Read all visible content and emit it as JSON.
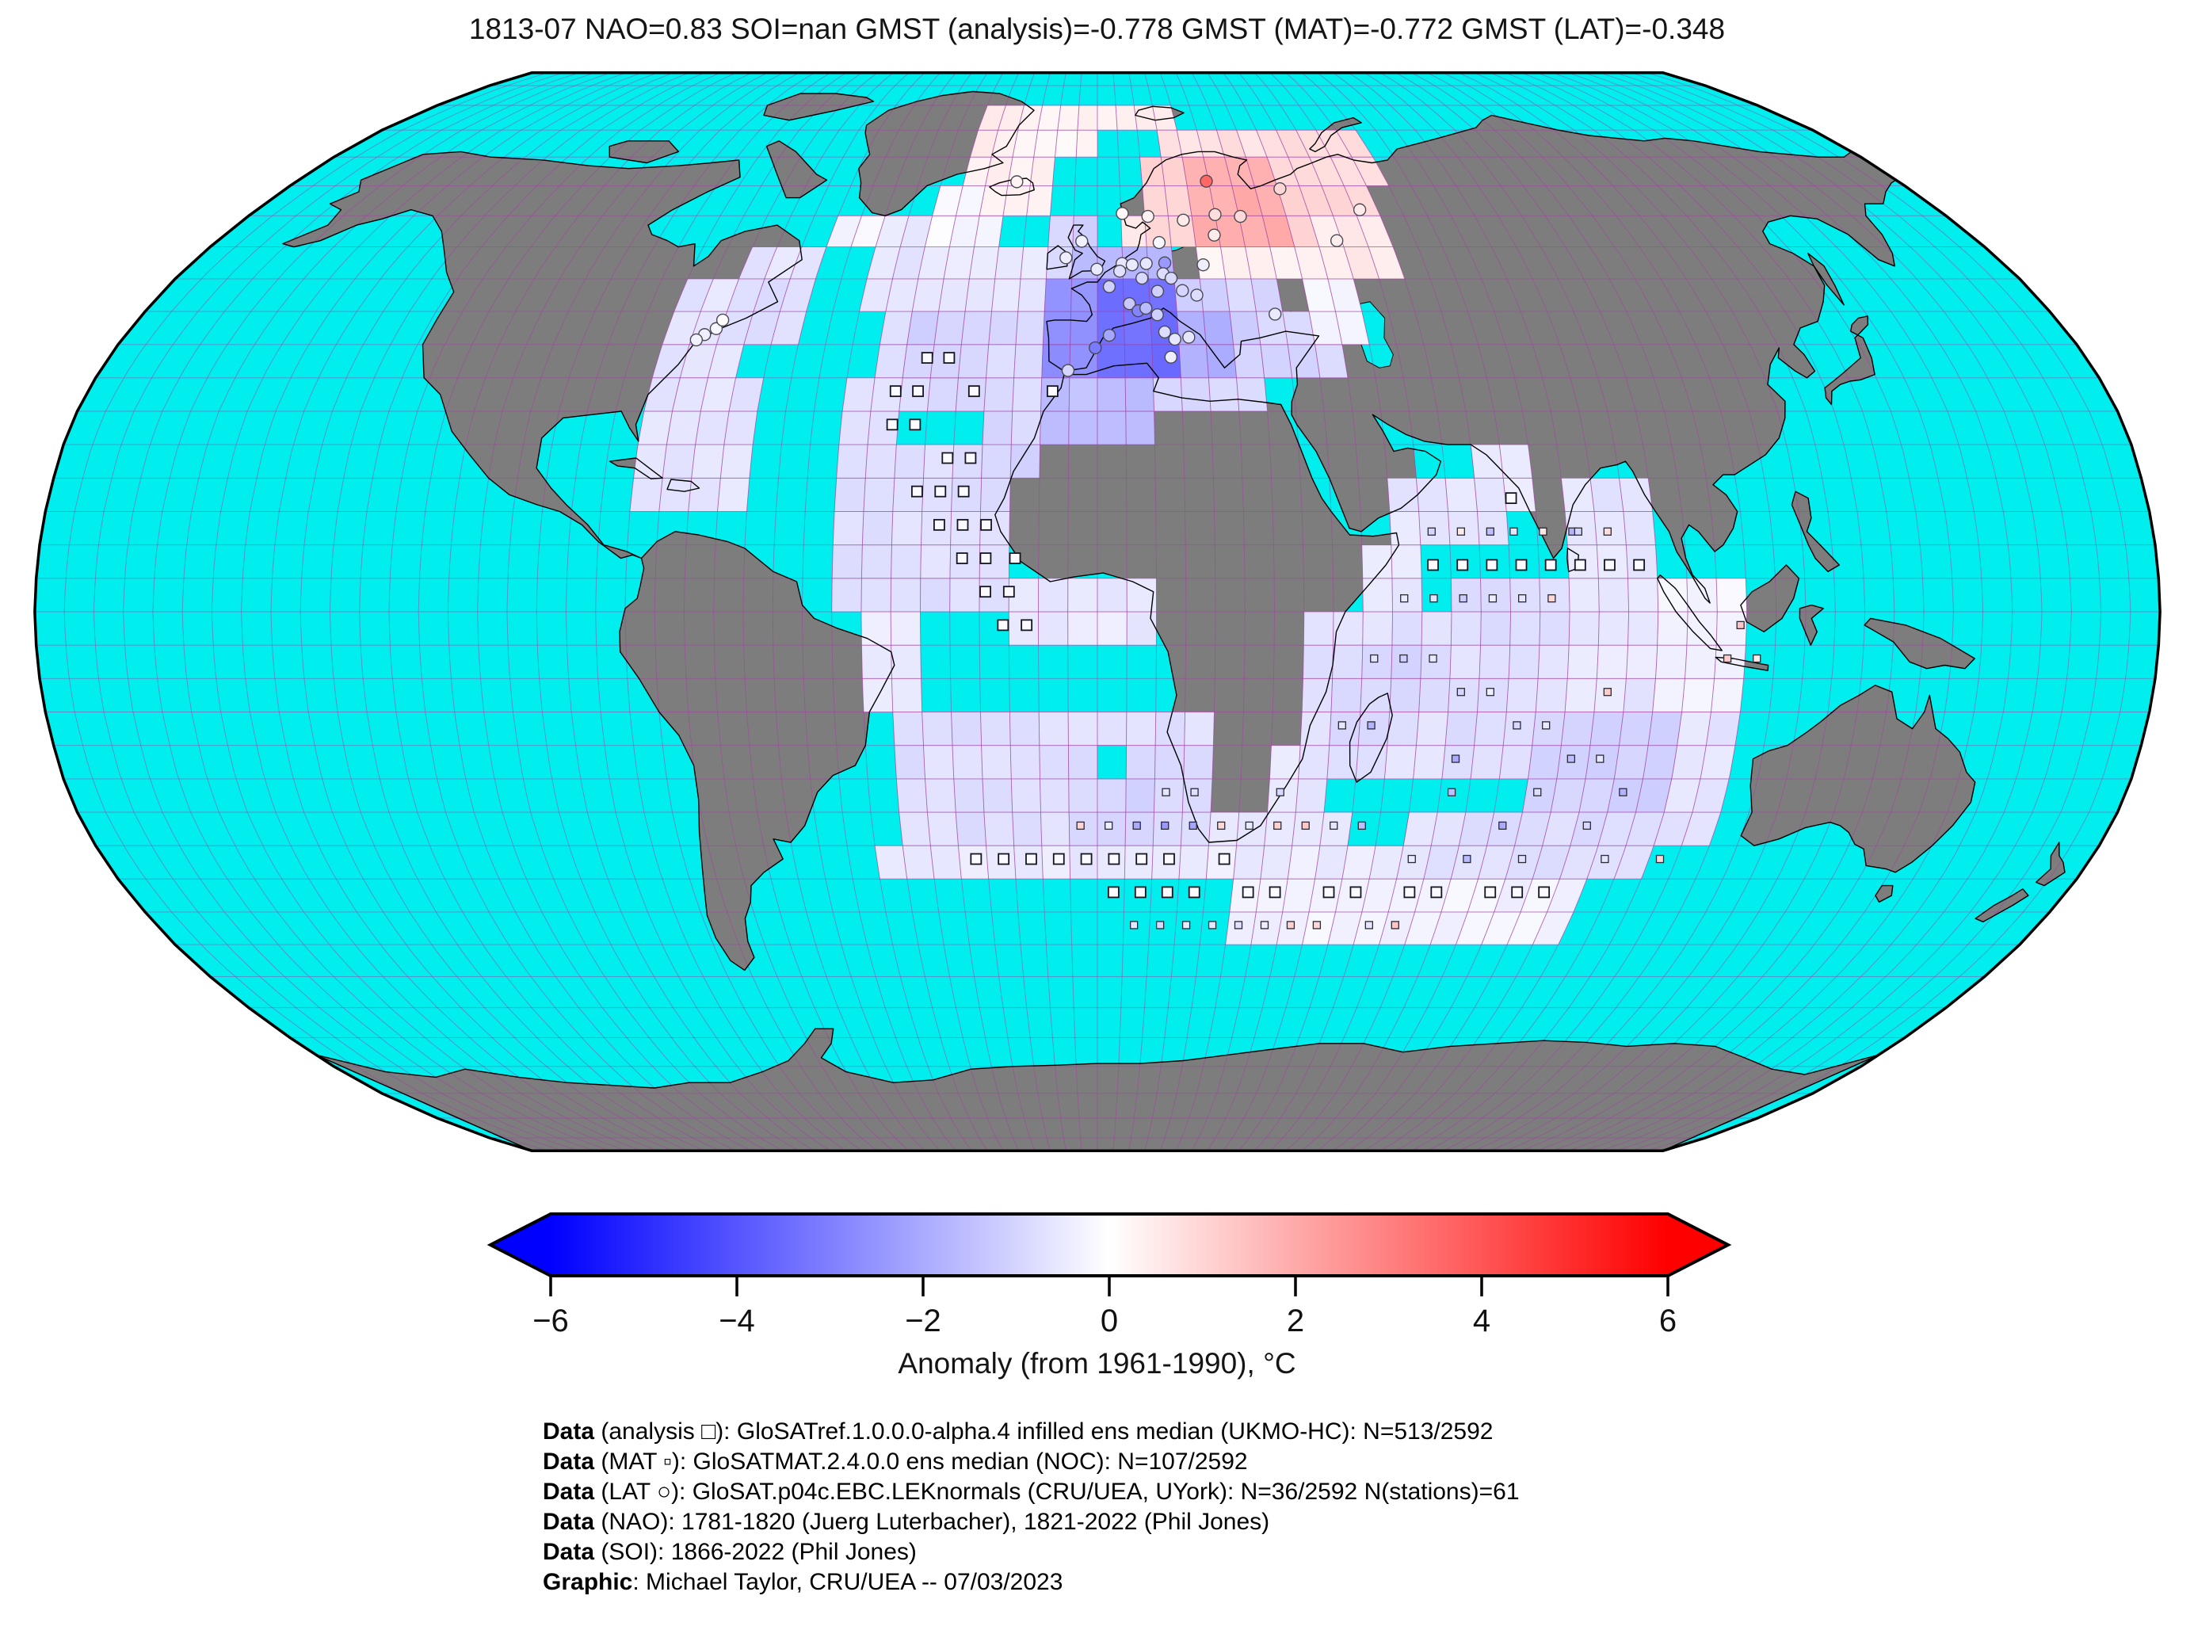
{
  "title": "1813-07 NAO=0.83 SOI=nan GMST (analysis)=-0.778 GMST (MAT)=-0.772 GMST (LAT)=-0.348",
  "colorbar": {
    "label": "Anomaly (from 1961-1990), °C",
    "vmin": -6,
    "vmax": 6,
    "ticks": [
      -6,
      -4,
      -2,
      0,
      2,
      4,
      6
    ],
    "tick_labels": [
      "−6",
      "−4",
      "−2",
      "0",
      "2",
      "4",
      "6"
    ],
    "gradient": [
      "#0000ff",
      "#ffffff",
      "#ff0000"
    ]
  },
  "footer": {
    "lines": [
      {
        "lead": "Data",
        "rest": " (analysis □): GloSATref.1.0.0.0-alpha.4 infilled ens median (UKMO-HC): N=513/2592"
      },
      {
        "lead": "Data",
        "rest": " (MAT ▫): GloSATMAT.2.4.0.0 ens median (NOC): N=107/2592"
      },
      {
        "lead": "Data",
        "rest": " (LAT ○): GloSAT.p04c.EBC.LEKnormals (CRU/UEA, UYork): N=36/2592 N(stations)=61"
      },
      {
        "lead": "Data",
        "rest": " (NAO): 1781-1820 (Juerg Luterbacher), 1821-2022 (Phil Jones)"
      },
      {
        "lead": "Data",
        "rest": " (SOI): 1866-2022 (Phil Jones)"
      },
      {
        "lead": "Graphic",
        "rest": ": Michael Taylor, CRU/UEA -- 07/03/2023"
      }
    ]
  },
  "map": {
    "projection": "robinson",
    "ocean_color": "#00eeee",
    "land_color": "#7d7d7d",
    "graticule_color": "rgba(165,60,165,0.55)",
    "cell_stroke_color": "rgba(150,60,150,0.35)",
    "coast_color": "#000000",
    "graticule_step_deg": 5,
    "cell_size_deg": 5,
    "cells": [
      [
        -80,
        35,
        -65,
        50,
        -0.65
      ],
      [
        -70,
        50,
        -55,
        55,
        -0.6
      ],
      [
        -65,
        40,
        -55,
        50,
        -0.7
      ],
      [
        -80,
        20,
        -70,
        35,
        -0.55
      ],
      [
        -55,
        55,
        -45,
        60,
        -0.25
      ],
      [
        -45,
        45,
        -10,
        55,
        -0.55
      ],
      [
        -45,
        55,
        -35,
        60,
        -0.55
      ],
      [
        -35,
        55,
        -20,
        65,
        -0.15
      ],
      [
        -25,
        60,
        -10,
        70,
        0.35
      ],
      [
        -30,
        65,
        -20,
        80,
        0.4
      ],
      [
        -20,
        70,
        0,
        80,
        0.25
      ],
      [
        0,
        75,
        20,
        80,
        0.35
      ],
      [
        -40,
        30,
        -10,
        45,
        -0.85
      ],
      [
        -35,
        35,
        -20,
        45,
        -1.05
      ],
      [
        -45,
        25,
        -35,
        35,
        -0.75
      ],
      [
        -75,
        25,
        -60,
        35,
        -0.6
      ],
      [
        -80,
        15,
        -60,
        25,
        -0.55
      ],
      [
        -45,
        15,
        -15,
        25,
        -0.75
      ],
      [
        -45,
        0,
        -15,
        15,
        -0.7
      ],
      [
        -20,
        20,
        -10,
        30,
        -0.95
      ],
      [
        -15,
        -5,
        10,
        5,
        -0.5
      ],
      [
        -40,
        -15,
        -30,
        0,
        -0.5
      ],
      [
        -35,
        -35,
        20,
        -15,
        -0.75
      ],
      [
        -5,
        -35,
        15,
        -20,
        -0.95
      ],
      [
        -40,
        -40,
        25,
        -35,
        -0.5
      ],
      [
        20,
        -40,
        60,
        -30,
        -0.45
      ],
      [
        25,
        -50,
        90,
        -40,
        -0.3
      ],
      [
        30,
        -30,
        40,
        -20,
        -0.55
      ],
      [
        35,
        -25,
        60,
        0,
        -0.7
      ],
      [
        40,
        -20,
        55,
        -5,
        -0.9
      ],
      [
        45,
        0,
        55,
        10,
        -0.55
      ],
      [
        50,
        10,
        70,
        20,
        -0.55
      ],
      [
        65,
        15,
        75,
        25,
        -0.5
      ],
      [
        60,
        -25,
        80,
        5,
        -0.75
      ],
      [
        80,
        -15,
        100,
        5,
        -0.55
      ],
      [
        75,
        -35,
        105,
        -15,
        -1.05
      ],
      [
        80,
        5,
        95,
        20,
        -0.6
      ],
      [
        95,
        -15,
        110,
        5,
        -0.25
      ],
      [
        100,
        -35,
        110,
        -15,
        -0.6
      ],
      [
        60,
        -40,
        100,
        -30,
        -0.75
      ],
      [
        -10,
        50,
        0,
        60,
        -1.0
      ],
      [
        -5,
        50,
        15,
        55,
        -1.7
      ],
      [
        15,
        45,
        30,
        50,
        -1.2
      ],
      [
        10,
        35,
        25,
        45,
        -1.9
      ],
      [
        25,
        35,
        35,
        45,
        -1.1
      ],
      [
        25,
        45,
        35,
        50,
        -0.9
      ],
      [
        -10,
        25,
        10,
        35,
        -1.5
      ],
      [
        10,
        30,
        30,
        35,
        -0.9
      ],
      [
        30,
        35,
        45,
        45,
        -0.9
      ],
      [
        40,
        40,
        50,
        50,
        -0.3
      ],
      [
        20,
        50,
        40,
        55,
        0.3
      ],
      [
        40,
        50,
        60,
        55,
        0.4
      ],
      [
        5,
        55,
        10,
        60,
        0.6
      ],
      [
        10,
        55,
        20,
        70,
        1.0
      ],
      [
        40,
        55,
        60,
        70,
        1.0
      ],
      [
        45,
        50,
        60,
        60,
        0.5
      ],
      [
        15,
        70,
        45,
        75,
        0.7
      ],
      [
        45,
        65,
        65,
        75,
        0.8
      ],
      [
        -10,
        35,
        0,
        50,
        -2.6
      ],
      [
        0,
        35,
        15,
        50,
        -3.4
      ],
      [
        20,
        55,
        40,
        70,
        1.9
      ]
    ],
    "no_data_holes": [
      [
        55,
        20,
        65,
        25
      ],
      [
        45,
        -35,
        55,
        -30
      ],
      [
        0,
        -25,
        5,
        -20
      ]
    ],
    "markers": {
      "analysis_squares": [
        [
          -31,
          38
        ],
        [
          -27,
          38
        ],
        [
          -36,
          33
        ],
        [
          -32,
          33
        ],
        [
          -22,
          33
        ],
        [
          -36,
          28
        ],
        [
          -32,
          28
        ],
        [
          -26,
          23
        ],
        [
          -22,
          23
        ],
        [
          -31,
          18
        ],
        [
          -27,
          18
        ],
        [
          -23,
          18
        ],
        [
          -27,
          13
        ],
        [
          -23,
          13
        ],
        [
          -19,
          13
        ],
        [
          -23,
          8
        ],
        [
          -19,
          8
        ],
        [
          -14,
          8
        ],
        [
          -19,
          3
        ],
        [
          -15,
          3
        ],
        [
          -16,
          -2
        ],
        [
          -12,
          -2
        ],
        [
          -8,
          33
        ],
        [
          -22,
          -37
        ],
        [
          -17,
          -37
        ],
        [
          -12,
          -37
        ],
        [
          -7,
          -37
        ],
        [
          -2,
          -37
        ],
        [
          3,
          -37
        ],
        [
          8,
          -37
        ],
        [
          13,
          -37
        ],
        [
          23,
          -37
        ],
        [
          3,
          -42
        ],
        [
          8,
          -42
        ],
        [
          13,
          -42
        ],
        [
          18,
          -42
        ],
        [
          28,
          -42
        ],
        [
          33,
          -42
        ],
        [
          43,
          -42
        ],
        [
          48,
          -42
        ],
        [
          58,
          -42
        ],
        [
          63,
          -42
        ],
        [
          73,
          -42
        ],
        [
          78,
          -42
        ],
        [
          83,
          -42
        ],
        [
          57,
          7
        ],
        [
          62,
          7
        ],
        [
          67,
          7
        ],
        [
          72,
          7
        ],
        [
          77,
          7
        ],
        [
          82,
          7
        ],
        [
          87,
          7
        ],
        [
          92,
          7
        ],
        [
          71,
          17
        ]
      ],
      "mat_squares": [
        [
          57,
          12,
          -1
        ],
        [
          62,
          12,
          0.5
        ],
        [
          67,
          12,
          -1.5
        ],
        [
          71,
          12,
          -0.6
        ],
        [
          76,
          12,
          0.6
        ],
        [
          81,
          12,
          -1.8
        ],
        [
          82,
          12,
          -1
        ],
        [
          87,
          12,
          0.8
        ],
        [
          52,
          2,
          -0.5
        ],
        [
          57,
          2,
          -0.6
        ],
        [
          62,
          2,
          -1.2
        ],
        [
          67,
          2,
          -0.4
        ],
        [
          72,
          2,
          -0.6
        ],
        [
          77,
          2,
          1
        ],
        [
          47,
          -7,
          -0.6
        ],
        [
          52,
          -7,
          -1.1
        ],
        [
          57,
          -7,
          -0.5
        ],
        [
          62,
          -12,
          -1
        ],
        [
          67,
          -12,
          -0.4
        ],
        [
          87,
          -12,
          1.2
        ],
        [
          42,
          -17,
          -0.6
        ],
        [
          47,
          -17,
          -1.8
        ],
        [
          72,
          -17,
          -0.9
        ],
        [
          77,
          -17,
          -0.5
        ],
        [
          62,
          -22,
          -2
        ],
        [
          82,
          -22,
          -1.5
        ],
        [
          87,
          -22,
          -0.6
        ],
        [
          92,
          -27,
          -1.8
        ],
        [
          77,
          -27,
          -0.8
        ],
        [
          62,
          -27,
          -1.5
        ],
        [
          12,
          -27,
          -0.6
        ],
        [
          17,
          -27,
          -0.7
        ],
        [
          32,
          -27,
          -0.9
        ],
        [
          47,
          -32,
          -1.5
        ],
        [
          72,
          -32,
          -2
        ],
        [
          87,
          -32,
          -0.9
        ],
        [
          -3,
          -32,
          1
        ],
        [
          2,
          -32,
          -0.4
        ],
        [
          7,
          -32,
          -2
        ],
        [
          12,
          -32,
          -2.4
        ],
        [
          17,
          -32,
          -2.1
        ],
        [
          22,
          -32,
          0.9
        ],
        [
          27,
          -32,
          -0.5
        ],
        [
          32,
          -32,
          1.1
        ],
        [
          37,
          -32,
          1.3
        ],
        [
          42,
          -32,
          -0.6
        ],
        [
          57,
          -37,
          -0.5
        ],
        [
          67,
          -37,
          -1.6
        ],
        [
          77,
          -37,
          -0.7
        ],
        [
          92,
          -37,
          -0.6
        ],
        [
          102,
          -37,
          0.9
        ],
        [
          7,
          -47,
          -0.6
        ],
        [
          12,
          -47,
          -0.9
        ],
        [
          17,
          -47,
          -0.5
        ],
        [
          22,
          -47,
          -0.6
        ],
        [
          27,
          -47,
          -0.7
        ],
        [
          32,
          -47,
          -0.4
        ],
        [
          37,
          -47,
          1.1
        ],
        [
          42,
          -47,
          0.9
        ],
        [
          52,
          -47,
          -0.6
        ],
        [
          57,
          -47,
          1.4
        ],
        [
          107,
          -7,
          1.2
        ],
        [
          112,
          -7,
          0.5
        ],
        [
          109,
          -2,
          1.4
        ]
      ],
      "lat_circles": [
        [
          -3.2,
          55.9,
          -0.3
        ],
        [
          -0.1,
          51.5,
          -0.5
        ],
        [
          -6.3,
          53.3,
          -0.4
        ],
        [
          2.3,
          48.8,
          -1.1
        ],
        [
          4.9,
          52.4,
          -0.6
        ],
        [
          4.4,
          51.2,
          -0.7
        ],
        [
          6.9,
          52.2,
          -0.5
        ],
        [
          8.7,
          50.1,
          -0.9
        ],
        [
          9.7,
          52.4,
          -0.6
        ],
        [
          13.4,
          52.5,
          -2.4
        ],
        [
          11.6,
          48.1,
          -1.1
        ],
        [
          12.9,
          50.8,
          -0.8
        ],
        [
          14.4,
          50.1,
          -0.9
        ],
        [
          16.4,
          48.2,
          -1.0
        ],
        [
          19.1,
          47.5,
          -0.8
        ],
        [
          6.1,
          46.2,
          -1.3
        ],
        [
          7.7,
          45.1,
          -2.9
        ],
        [
          9.2,
          45.5,
          -1.6
        ],
        [
          11.3,
          44.5,
          -1.1
        ],
        [
          12.5,
          41.9,
          -0.8
        ],
        [
          14.3,
          40.8,
          -0.6
        ],
        [
          13.4,
          38.1,
          -0.4
        ],
        [
          16.9,
          41.1,
          -0.6
        ],
        [
          2.2,
          41.4,
          -2.1
        ],
        [
          -0.4,
          39.5,
          -3.1
        ],
        [
          -5.3,
          36.1,
          -1.0
        ],
        [
          10.7,
          59.9,
          0.3
        ],
        [
          5.3,
          60.4,
          0.2
        ],
        [
          18.1,
          59.3,
          0.5
        ],
        [
          12.6,
          55.7,
          -0.2
        ],
        [
          24.5,
          65.8,
          3.6
        ],
        [
          25,
          60.2,
          0.8
        ],
        [
          30.3,
          59.9,
          0.9
        ],
        [
          24.1,
          56.9,
          0.5
        ],
        [
          21,
          52.2,
          -0.4
        ],
        [
          33.5,
          44.6,
          -0.5
        ],
        [
          40.5,
          64.5,
          1.0
        ],
        [
          49,
          56,
          0.4
        ],
        [
          56.2,
          61,
          0.5
        ],
        [
          -18.1,
          65.7,
          0.3
        ],
        [
          -71,
          42.4,
          -0.2
        ],
        [
          -72.8,
          41.5,
          -0.4
        ],
        [
          -74,
          40.7,
          -0.3
        ],
        [
          -70.3,
          43.7,
          0.1
        ]
      ]
    }
  },
  "chart_data": {
    "type": "heatmap",
    "title": "1813-07 NAO=0.83 SOI=nan GMST (analysis)=-0.778 GMST (MAT)=-0.772 GMST (LAT)=-0.348",
    "units": "°C anomaly from 1961-1990",
    "value_range": [
      -6,
      6
    ],
    "colormap": "blue-white-red",
    "indices": {
      "month": "1813-07",
      "NAO": 0.83,
      "SOI": "nan",
      "GMST_analysis": -0.778,
      "GMST_MAT": -0.772,
      "GMST_LAT": -0.348
    },
    "counts": {
      "analysis_cells": "513/2592",
      "MAT_cells": "107/2592",
      "LAT_cells": "36/2592",
      "LAT_stations": 61
    },
    "note": "gridded anomaly patches in map.cells as [lon0,lat0,lon1,lat1,anomaly_degC]"
  }
}
